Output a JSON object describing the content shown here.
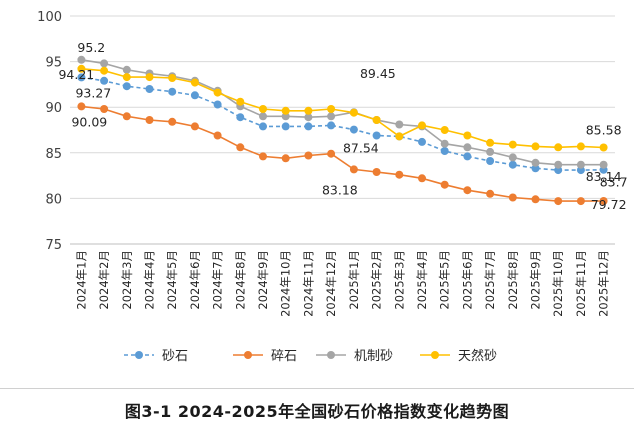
{
  "caption": "图3-1 2024-2025年全国砂石价格指数变化趋势图",
  "chart_data": {
    "type": "line",
    "x": [
      "2024年1月",
      "2024年2月",
      "2024年3月",
      "2024年4月",
      "2024年5月",
      "2024年6月",
      "2024年7月",
      "2024年8月",
      "2024年9月",
      "2024年10月",
      "2024年11月",
      "2024年12月",
      "2025年1月",
      "2025年2月",
      "2025年3月",
      "2025年4月",
      "2025年5月",
      "2025年6月",
      "2025年7月",
      "2025年8月",
      "2025年9月",
      "2025年10月",
      "2025年11月",
      "2025年12月"
    ],
    "ylim": [
      75,
      100
    ],
    "yticks": [
      75,
      80,
      85,
      90,
      95,
      100
    ],
    "grid": true,
    "legend": "bottom",
    "series": [
      {
        "name": "砂石",
        "color": "#5b9bd5",
        "dash": true,
        "values": [
          93.27,
          92.9,
          92.3,
          92.0,
          91.7,
          91.3,
          90.3,
          88.9,
          87.9,
          87.9,
          87.9,
          88.0,
          87.54,
          86.9,
          86.8,
          86.2,
          85.2,
          84.6,
          84.1,
          83.7,
          83.3,
          83.1,
          83.1,
          83.14
        ]
      },
      {
        "name": "碎石",
        "color": "#ed7d31",
        "dash": false,
        "values": [
          90.09,
          89.8,
          89.0,
          88.6,
          88.4,
          87.9,
          86.9,
          85.6,
          84.6,
          84.4,
          84.7,
          84.9,
          83.18,
          82.9,
          82.6,
          82.2,
          81.5,
          80.9,
          80.5,
          80.1,
          79.9,
          79.7,
          79.7,
          79.72
        ]
      },
      {
        "name": "机制砂",
        "color": "#a5a5a5",
        "dash": false,
        "values": [
          95.2,
          94.8,
          94.1,
          93.7,
          93.4,
          92.9,
          91.8,
          90.1,
          89.0,
          89.0,
          88.9,
          89.0,
          89.45,
          88.6,
          88.1,
          87.9,
          86.0,
          85.6,
          85.1,
          84.5,
          83.9,
          83.7,
          83.7,
          83.7
        ]
      },
      {
        "name": "天然砂",
        "color": "#ffc000",
        "dash": false,
        "values": [
          94.21,
          94.0,
          93.3,
          93.3,
          93.2,
          92.7,
          91.6,
          90.6,
          89.8,
          89.6,
          89.6,
          89.8,
          89.4,
          88.6,
          86.8,
          88.0,
          87.5,
          86.9,
          86.1,
          85.9,
          85.7,
          85.6,
          85.7,
          85.58
        ]
      }
    ],
    "annotations": [
      {
        "text": "95.2",
        "series": 2,
        "index": 0,
        "dx": 10,
        "dy": -13
      },
      {
        "text": "94.21",
        "series": 3,
        "index": 0,
        "dx": -5,
        "dy": 5
      },
      {
        "text": "93.27",
        "series": 0,
        "index": 0,
        "dx": 12,
        "dy": 15
      },
      {
        "text": "90.09",
        "series": 1,
        "index": 0,
        "dx": 8,
        "dy": 15
      },
      {
        "text": "89.45",
        "series": 2,
        "index": 12,
        "dx": 24,
        "dy": -39
      },
      {
        "text": "87.54",
        "series": 0,
        "index": 12,
        "dx": 7,
        "dy": 18
      },
      {
        "text": "83.18",
        "series": 1,
        "index": 12,
        "dx": -14,
        "dy": 20
      },
      {
        "text": "85.58",
        "series": 3,
        "index": 23,
        "dx": 0,
        "dy": -18
      },
      {
        "text": "83.7",
        "series": 2,
        "index": 23,
        "dx": 10,
        "dy": 17
      },
      {
        "text": "83.14",
        "series": 0,
        "index": 23,
        "dx": 0,
        "dy": 6
      },
      {
        "text": "79.72",
        "series": 1,
        "index": 23,
        "dx": 5,
        "dy": 3
      }
    ]
  }
}
